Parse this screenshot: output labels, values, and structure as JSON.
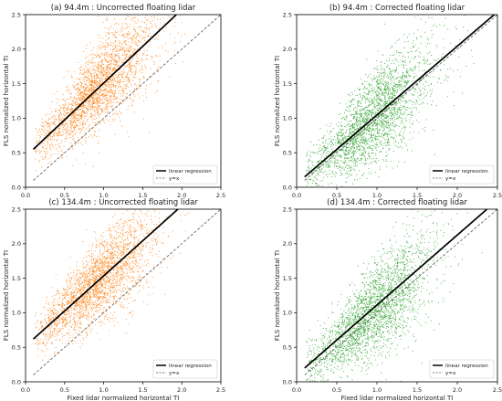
{
  "chart_data": [
    {
      "type": "scatter",
      "title": "(a) 94.4m : Uncorrected floating lidar",
      "xlabel": "",
      "ylabel": "FLS normalized horizontal TI",
      "xlim": [
        0,
        2.5
      ],
      "ylim": [
        0,
        2.5
      ],
      "x_ticks": [
        "0.0",
        "0.5",
        "1.0",
        "1.5",
        "2.0",
        "2.5"
      ],
      "y_ticks": [
        "0.0",
        "0.5",
        "1.0",
        "1.5",
        "2.0",
        "2.5"
      ],
      "point_color": "#ff7f0e",
      "grid": false,
      "legend_position": "lower-right",
      "series": [
        {
          "name": "linear regression",
          "kind": "line",
          "color": "#000000",
          "x": [
            0.1,
            1.93
          ],
          "y": [
            0.55,
            2.5
          ]
        },
        {
          "name": "y=x",
          "kind": "dashed-line",
          "color": "#555555",
          "x": [
            0.1,
            2.5
          ],
          "y": [
            0.1,
            2.5
          ]
        }
      ],
      "scatter_summary": {
        "n_points": 2600,
        "x_center": 0.95,
        "x_spread": 0.42,
        "slope": 1.07,
        "intercept": 0.45,
        "noise": 0.28
      }
    },
    {
      "type": "scatter",
      "title": "(b) 94.4m : Corrected floating lidar",
      "xlabel": "",
      "ylabel": "FLS normalized horizontal TI",
      "xlim": [
        0,
        2.5
      ],
      "ylim": [
        0,
        2.5
      ],
      "x_ticks": [
        "0.0",
        "0.5",
        "1.0",
        "1.5",
        "2.0",
        "2.5"
      ],
      "y_ticks": [
        "0.0",
        "0.5",
        "1.0",
        "1.5",
        "2.0",
        "2.5"
      ],
      "point_color": "#2ca02c",
      "grid": false,
      "legend_position": "lower-right",
      "series": [
        {
          "name": "linear regression",
          "kind": "line",
          "color": "#000000",
          "x": [
            0.1,
            2.46
          ],
          "y": [
            0.15,
            2.5
          ]
        },
        {
          "name": "y=x",
          "kind": "dashed-line",
          "color": "#555555",
          "x": [
            0.1,
            2.5
          ],
          "y": [
            0.1,
            2.5
          ]
        }
      ],
      "scatter_summary": {
        "n_points": 2600,
        "x_center": 0.95,
        "x_spread": 0.42,
        "slope": 1.0,
        "intercept": 0.05,
        "noise": 0.3
      }
    },
    {
      "type": "scatter",
      "title": "(c) 134.4m : Uncorrected floating lidar",
      "xlabel": "Fixed lidar normalized horizontal TI",
      "ylabel": "FLS normalized horizontal TI",
      "xlim": [
        0,
        2.5
      ],
      "ylim": [
        0,
        2.5
      ],
      "x_ticks": [
        "0.0",
        "0.5",
        "1.0",
        "1.5",
        "2.0",
        "2.5"
      ],
      "y_ticks": [
        "0.0",
        "0.5",
        "1.0",
        "1.5",
        "2.0",
        "2.5"
      ],
      "point_color": "#ff7f0e",
      "grid": false,
      "legend_position": "lower-right",
      "series": [
        {
          "name": "linear regression",
          "kind": "line",
          "color": "#000000",
          "x": [
            0.1,
            1.95
          ],
          "y": [
            0.62,
            2.5
          ]
        },
        {
          "name": "y=x",
          "kind": "dashed-line",
          "color": "#555555",
          "x": [
            0.1,
            2.5
          ],
          "y": [
            0.1,
            2.5
          ]
        }
      ],
      "scatter_summary": {
        "n_points": 2600,
        "x_center": 0.95,
        "x_spread": 0.42,
        "slope": 1.02,
        "intercept": 0.5,
        "noise": 0.28
      }
    },
    {
      "type": "scatter",
      "title": "(d) 134.4m : Corrected floating lidar",
      "xlabel": "Fixed lidar normalized horizontal TI",
      "ylabel": "FLS normalized horizontal TI",
      "xlim": [
        0,
        2.5
      ],
      "ylim": [
        0,
        2.5
      ],
      "x_ticks": [
        "0.0",
        "0.5",
        "1.0",
        "1.5",
        "2.0",
        "2.5"
      ],
      "y_ticks": [
        "0.0",
        "0.5",
        "1.0",
        "1.5",
        "2.0",
        "2.5"
      ],
      "point_color": "#2ca02c",
      "grid": false,
      "legend_position": "lower-right",
      "series": [
        {
          "name": "linear regression",
          "kind": "line",
          "color": "#000000",
          "x": [
            0.1,
            2.37
          ],
          "y": [
            0.2,
            2.5
          ]
        },
        {
          "name": "y=x",
          "kind": "dashed-line",
          "color": "#555555",
          "x": [
            0.1,
            2.5
          ],
          "y": [
            0.1,
            2.5
          ]
        }
      ],
      "scatter_summary": {
        "n_points": 2600,
        "x_center": 0.95,
        "x_spread": 0.42,
        "slope": 1.0,
        "intercept": 0.06,
        "noise": 0.3
      }
    }
  ]
}
